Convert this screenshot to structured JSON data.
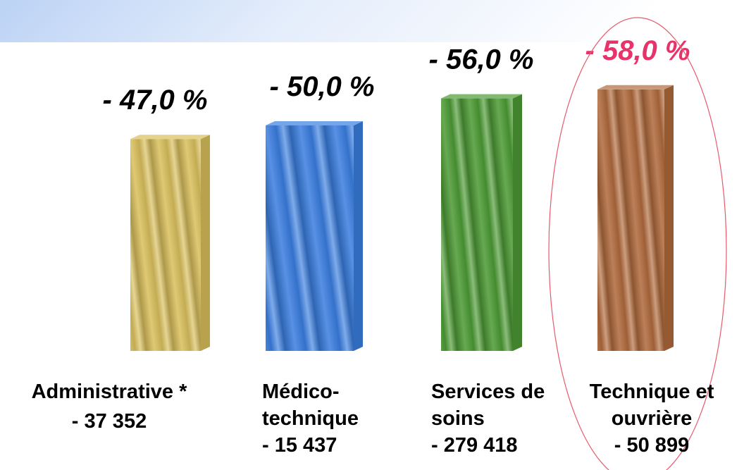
{
  "chart_data": {
    "type": "bar",
    "categories": [
      "Administrative *",
      "Médico-technique",
      "Services de soins",
      "Technique et ouvrière"
    ],
    "headcounts": [
      "- 37 352",
      "- 15 437",
      "- 279 418",
      "- 50 899"
    ],
    "values": [
      -47,
      -50,
      -56,
      -58
    ],
    "value_labels": [
      "- 47,0 %",
      "- 50,0 %",
      "- 56,0 %",
      "- 58,0 %"
    ],
    "colors": [
      "#d9bf5c",
      "#3a7ee0",
      "#4c9a34",
      "#b06a3c"
    ],
    "label_colors": [
      "#000000",
      "#000000",
      "#000000",
      "#e8336a"
    ],
    "ylim": [
      0,
      -60
    ]
  }
}
